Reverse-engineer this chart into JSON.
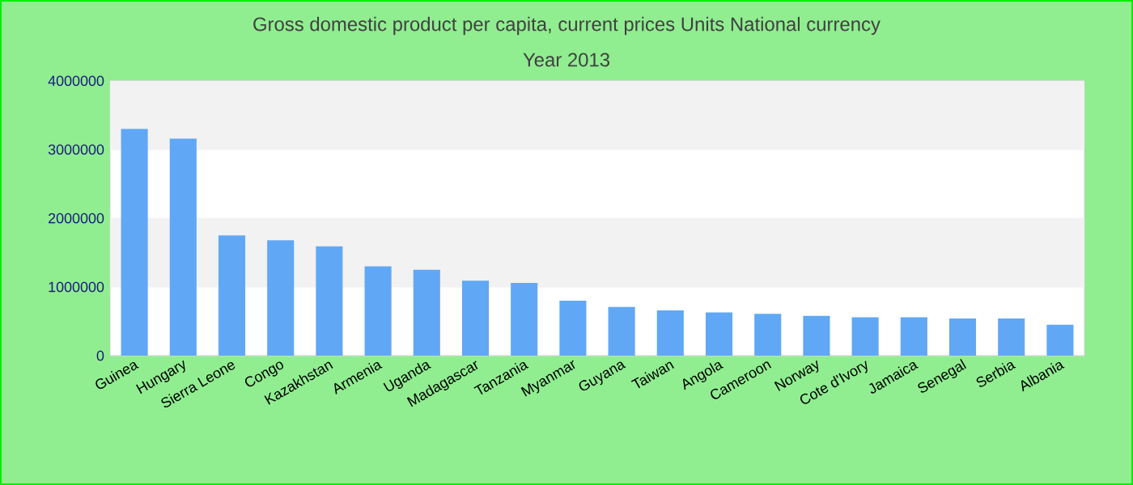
{
  "chart_data": {
    "type": "bar",
    "title": "Gross domestic product per capita, current prices Units National currency",
    "subtitle": "Year 2013",
    "categories": [
      "Guinea",
      "Hungary",
      "Sierra Leone",
      "Congo",
      "Kazakhstan",
      "Armenia",
      "Uganda",
      "Madagascar",
      "Tanzania",
      "Myanmar",
      "Guyana",
      "Taiwan",
      "Angola",
      "Cameroon",
      "Norway",
      "Cote d'Ivory",
      "Jamaica",
      "Senegal",
      "Serbia",
      "Albania"
    ],
    "values": [
      3300000,
      3160000,
      1750000,
      1680000,
      1590000,
      1300000,
      1250000,
      1090000,
      1060000,
      800000,
      710000,
      660000,
      630000,
      610000,
      580000,
      560000,
      560000,
      540000,
      540000,
      450000
    ],
    "color": "#60a8f5",
    "ylim": [
      0,
      4000000
    ],
    "yticks": [
      0,
      1000000,
      2000000,
      3000000,
      4000000
    ],
    "grid": "y"
  }
}
